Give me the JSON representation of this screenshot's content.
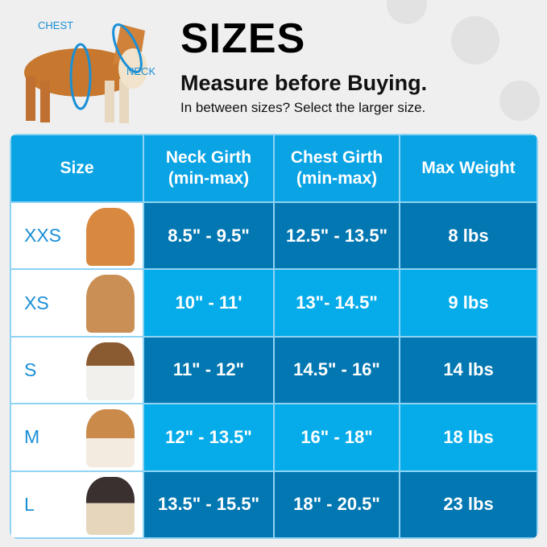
{
  "header": {
    "title": "SIZES",
    "subtitle": "Measure before Buying.",
    "note": "In between sizes? Select the larger size.",
    "diagram_labels": {
      "chest": "CHEST",
      "neck": "NECK"
    }
  },
  "table": {
    "columns": [
      "Size",
      "Neck Girth (min-max)",
      "Chest Girth (min-max)",
      "Max Weight"
    ],
    "rows": [
      {
        "size": "XXS",
        "neck": "8.5\" - 9.5\"",
        "chest": "12.5\" - 13.5\"",
        "weight": "8 lbs"
      },
      {
        "size": "XS",
        "neck": "10\" - 11'",
        "chest": "13\"- 14.5\"",
        "weight": "9 lbs"
      },
      {
        "size": "S",
        "neck": "11\" - 12\"",
        "chest": "14.5\" - 16\"",
        "weight": "14 lbs"
      },
      {
        "size": "M",
        "neck": "12\" - 13.5\"",
        "chest": "16\" - 18\"",
        "weight": "18 lbs"
      },
      {
        "size": "L",
        "neck": "13.5\" - 15.5\"",
        "chest": "18\" - 20.5\"",
        "weight": "23 lbs"
      }
    ]
  },
  "colors": {
    "header": "#0aa3e4",
    "row_dark": "#0277b1",
    "row_light": "#06ace9",
    "size_text": "#1a8fd6"
  }
}
